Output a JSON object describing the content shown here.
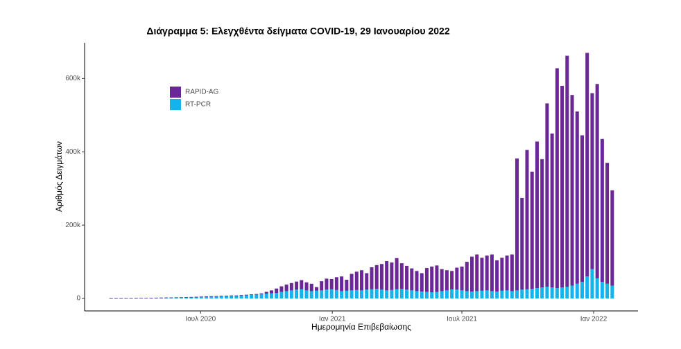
{
  "chart_data": {
    "type": "stacked_bar",
    "title": "Διάγραμμα 5: Ελεγχθέντα δείγματα COVID-19, 29 Ιανουαρίου 2022",
    "x_label": "Ημερομηνία Επιβεβαίωσης",
    "y_label": "Αριθμός Δειγμάτων",
    "x": [
      57,
      64,
      71,
      78,
      85,
      92,
      99,
      106,
      113,
      120,
      127,
      134,
      141,
      148,
      155,
      162,
      169,
      176,
      183,
      190,
      197,
      204,
      211,
      218,
      225,
      232,
      239,
      246,
      253,
      260,
      267,
      274,
      281,
      288,
      295,
      302,
      309,
      316,
      323,
      330,
      337,
      344,
      351,
      358,
      365,
      372,
      379,
      386,
      393,
      400,
      407,
      414,
      421,
      428,
      435,
      442,
      449,
      456,
      463,
      470,
      477,
      484,
      491,
      498,
      505,
      512,
      519,
      526,
      533,
      540,
      547,
      554,
      561,
      568,
      575,
      582,
      589,
      596,
      603,
      610,
      617,
      624,
      631,
      638,
      645,
      652,
      659,
      666,
      673,
      680,
      687,
      694,
      701,
      708,
      715,
      722,
      729,
      736,
      743,
      750,
      757
    ],
    "xlim": [
      20,
      793
    ],
    "xticks": [
      {
        "value": 182,
        "label": "Ιουλ 2020"
      },
      {
        "value": 366,
        "label": "Ιαν 2021"
      },
      {
        "value": 547,
        "label": "Ιουλ 2021"
      },
      {
        "value": 731,
        "label": "Ιαν 2022"
      }
    ],
    "ylim": [
      -34000,
      697000
    ],
    "yticks": [
      0,
      {
        "value": 200000,
        "label": "200k"
      },
      {
        "value": 400000,
        "label": "400k"
      },
      {
        "value": 600000,
        "label": "600k"
      }
    ],
    "series": [
      {
        "name": "RT-PCR",
        "color": "#12b4ee",
        "values": [
          500,
          600,
          800,
          900,
          1000,
          1200,
          1500,
          1500,
          1800,
          2000,
          2200,
          2500,
          2600,
          3000,
          3200,
          3500,
          4000,
          4500,
          5000,
          5500,
          6000,
          6500,
          7000,
          7500,
          8000,
          8000,
          9000,
          10000,
          11000,
          12000,
          12000,
          13000,
          14000,
          15000,
          18000,
          20000,
          22000,
          24000,
          25000,
          22000,
          20000,
          21000,
          22000,
          24000,
          25000,
          23000,
          20000,
          21000,
          22000,
          23000,
          22000,
          24000,
          25000,
          26000,
          24000,
          22000,
          23000,
          25000,
          26000,
          24000,
          22000,
          20000,
          19000,
          18000,
          17000,
          18000,
          20000,
          22000,
          25000,
          24000,
          22000,
          20000,
          19000,
          20000,
          21000,
          22000,
          20000,
          19000,
          21000,
          22000,
          20000,
          22000,
          24000,
          25000,
          26000,
          28000,
          30000,
          32000,
          30000,
          28000,
          30000,
          32000,
          35000,
          40000,
          45000,
          60000,
          80000,
          55000,
          45000,
          40000,
          35000
        ]
      },
      {
        "name": "RAPID-AG",
        "color": "#6a2795",
        "values": [
          0,
          0,
          0,
          0,
          0,
          0,
          0,
          0,
          0,
          0,
          0,
          0,
          0,
          0,
          0,
          0,
          0,
          0,
          0,
          0,
          0,
          0,
          0,
          0,
          0,
          0,
          0,
          0,
          0,
          0,
          2000,
          5000,
          8000,
          12000,
          15000,
          18000,
          20000,
          22000,
          25000,
          22000,
          20000,
          10000,
          25000,
          30000,
          28000,
          35000,
          40000,
          30000,
          45000,
          50000,
          55000,
          45000,
          60000,
          65000,
          70000,
          80000,
          75000,
          85000,
          70000,
          65000,
          60000,
          55000,
          50000,
          65000,
          70000,
          72000,
          60000,
          55000,
          50000,
          60000,
          65000,
          80000,
          95000,
          100000,
          90000,
          95000,
          100000,
          85000,
          90000,
          95000,
          100000,
          360000,
          250000,
          380000,
          320000,
          400000,
          350000,
          500000,
          420000,
          600000,
          550000,
          630000,
          520000,
          470000,
          400000,
          610000,
          480000,
          530000,
          390000,
          330000,
          260000
        ]
      }
    ]
  }
}
